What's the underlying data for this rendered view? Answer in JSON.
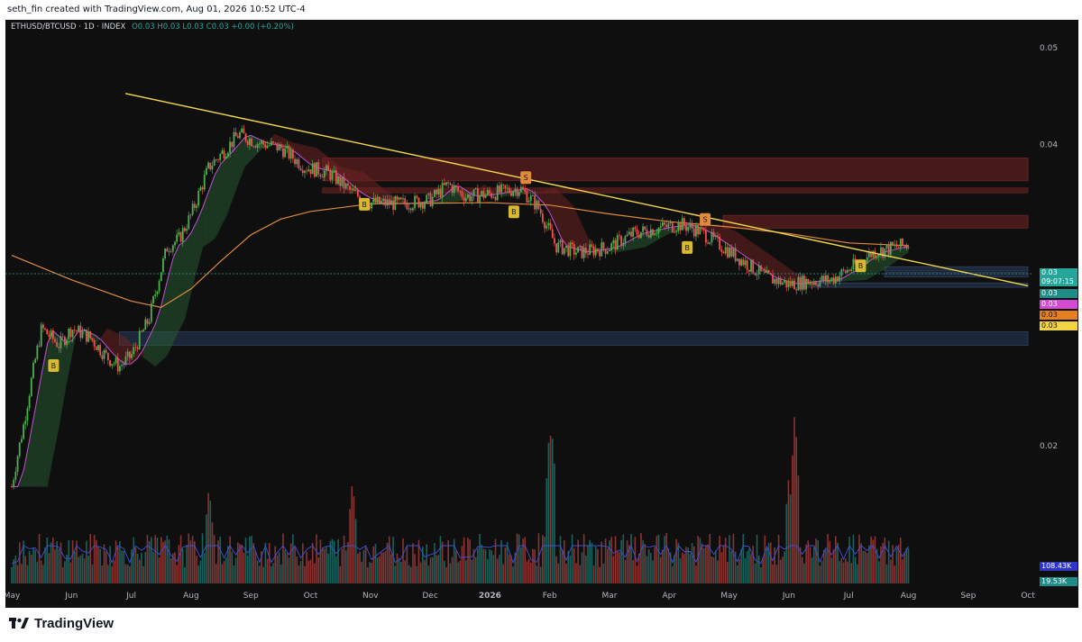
{
  "header": {
    "credit": "seth_fin created with TradingView.com, Aug 01, 2026 10:52 UTC-4"
  },
  "legend": {
    "symbol": "ETHUSD/BTCUSD · 1D · INDEX",
    "ohlc": "O0.03 H0.03 L0.03 C0.03 +0.00 (+0.20%)"
  },
  "footer": {
    "brand": "TradingView"
  },
  "colors": {
    "background": "#0f0f0f",
    "up": "#26a69a",
    "up_candle": "#4caf50",
    "down": "#ef5350",
    "trendline": "#f5d84a",
    "sma": "#e08a3c",
    "signal": "#d9b92f"
  },
  "badges": {
    "price": "0.03",
    "countdown": "09:07:15",
    "cyan": "0.03",
    "magenta": "0.03",
    "orange": "0.03",
    "yellow": "0.03",
    "vol_sma": "108.43K",
    "volume": "19.53K"
  },
  "chart_data": {
    "type": "candlestick",
    "symbol": "ETHUSD/BTCUSD",
    "timeframe": "1D",
    "x_ticks": [
      "May",
      "Jun",
      "Jul",
      "Aug",
      "Sep",
      "Oct",
      "Nov",
      "Dec",
      "2026",
      "Feb",
      "Mar",
      "Apr",
      "May",
      "Jun",
      "Jul",
      "Aug",
      "Sep",
      "Oct"
    ],
    "y_ticks": [
      "0.05",
      "0.04",
      "0.02"
    ],
    "close_series": [
      {
        "m": 0.0,
        "v": 0.0182
      },
      {
        "m": 0.2,
        "v": 0.021
      },
      {
        "m": 0.5,
        "v": 0.0262
      },
      {
        "m": 0.8,
        "v": 0.0252
      },
      {
        "m": 1.0,
        "v": 0.0262
      },
      {
        "m": 1.3,
        "v": 0.0257
      },
      {
        "m": 1.6,
        "v": 0.0245
      },
      {
        "m": 1.8,
        "v": 0.024
      },
      {
        "m": 2.0,
        "v": 0.0246
      },
      {
        "m": 2.3,
        "v": 0.0268
      },
      {
        "m": 2.6,
        "v": 0.0316
      },
      {
        "m": 2.8,
        "v": 0.0322
      },
      {
        "m": 3.0,
        "v": 0.034
      },
      {
        "m": 3.3,
        "v": 0.038
      },
      {
        "m": 3.6,
        "v": 0.0397
      },
      {
        "m": 3.8,
        "v": 0.041
      },
      {
        "m": 4.1,
        "v": 0.0402
      },
      {
        "m": 4.5,
        "v": 0.0397
      },
      {
        "m": 4.9,
        "v": 0.038
      },
      {
        "m": 5.3,
        "v": 0.0375
      },
      {
        "m": 5.7,
        "v": 0.0358
      },
      {
        "m": 6.0,
        "v": 0.035
      },
      {
        "m": 6.5,
        "v": 0.0349
      },
      {
        "m": 7.0,
        "v": 0.0352
      },
      {
        "m": 7.3,
        "v": 0.0365
      },
      {
        "m": 7.6,
        "v": 0.0355
      },
      {
        "m": 8.0,
        "v": 0.0357
      },
      {
        "m": 8.5,
        "v": 0.0362
      },
      {
        "m": 8.8,
        "v": 0.0347
      },
      {
        "m": 9.1,
        "v": 0.0317
      },
      {
        "m": 9.5,
        "v": 0.0312
      },
      {
        "m": 10.0,
        "v": 0.0316
      },
      {
        "m": 10.4,
        "v": 0.0326
      },
      {
        "m": 10.8,
        "v": 0.033
      },
      {
        "m": 11.2,
        "v": 0.0333
      },
      {
        "m": 11.5,
        "v": 0.0328
      },
      {
        "m": 11.9,
        "v": 0.0316
      },
      {
        "m": 12.3,
        "v": 0.0304
      },
      {
        "m": 12.6,
        "v": 0.0295
      },
      {
        "m": 13.0,
        "v": 0.029
      },
      {
        "m": 13.3,
        "v": 0.0292
      },
      {
        "m": 13.7,
        "v": 0.0293
      },
      {
        "m": 14.0,
        "v": 0.03
      },
      {
        "m": 14.4,
        "v": 0.0312
      },
      {
        "m": 14.8,
        "v": 0.0316
      },
      {
        "m": 15.0,
        "v": 0.0318
      }
    ],
    "sma_series": [
      {
        "m": 0.0,
        "v": 0.031
      },
      {
        "m": 1.0,
        "v": 0.0293
      },
      {
        "m": 2.0,
        "v": 0.0279
      },
      {
        "m": 2.5,
        "v": 0.0275
      },
      {
        "m": 3.0,
        "v": 0.0287
      },
      {
        "m": 3.5,
        "v": 0.0306
      },
      {
        "m": 4.0,
        "v": 0.0325
      },
      {
        "m": 4.5,
        "v": 0.0337
      },
      {
        "m": 5.0,
        "v": 0.0343
      },
      {
        "m": 6.0,
        "v": 0.0349
      },
      {
        "m": 8.0,
        "v": 0.035
      },
      {
        "m": 9.0,
        "v": 0.0348
      },
      {
        "m": 10.0,
        "v": 0.0341
      },
      {
        "m": 11.0,
        "v": 0.0335
      },
      {
        "m": 12.0,
        "v": 0.0331
      },
      {
        "m": 13.0,
        "v": 0.0326
      },
      {
        "m": 14.0,
        "v": 0.0319
      },
      {
        "m": 15.0,
        "v": 0.0317
      }
    ],
    "trendline": [
      {
        "m": 1.9,
        "v": 0.045
      },
      {
        "m": 17.0,
        "v": 0.0289
      }
    ],
    "zones": [
      {
        "m0": 5.2,
        "m1": 17.0,
        "v0": 0.0368,
        "v1": 0.0388,
        "kind": "supply"
      },
      {
        "m0": 5.2,
        "m1": 17.0,
        "v0": 0.0358,
        "v1": 0.0362,
        "kind": "supply"
      },
      {
        "m0": 11.9,
        "m1": 17.0,
        "v0": 0.033,
        "v1": 0.034,
        "kind": "supply"
      },
      {
        "m0": 14.6,
        "m1": 17.0,
        "v0": 0.0299,
        "v1": 0.0302,
        "kind": "demand"
      },
      {
        "m0": 14.6,
        "m1": 17.0,
        "v0": 0.0295,
        "v1": 0.0298,
        "kind": "demand"
      },
      {
        "m0": 13.2,
        "m1": 17.0,
        "v0": 0.0288,
        "v1": 0.0291,
        "kind": "demand"
      },
      {
        "m0": 1.8,
        "m1": 17.0,
        "v0": 0.0252,
        "v1": 0.026,
        "kind": "demand"
      }
    ],
    "signals": [
      {
        "label": "B",
        "m": 0.7,
        "v": 0.024
      },
      {
        "label": "B",
        "m": 5.9,
        "v": 0.0348
      },
      {
        "label": "S",
        "m": 8.6,
        "v": 0.037
      },
      {
        "label": "B",
        "m": 8.4,
        "v": 0.0342
      },
      {
        "label": "S",
        "m": 11.6,
        "v": 0.0336
      },
      {
        "label": "B",
        "m": 11.3,
        "v": 0.0315
      },
      {
        "label": "B",
        "m": 14.2,
        "v": 0.0302
      }
    ],
    "volume_spikes": [
      {
        "m": 9.0,
        "v": 180
      },
      {
        "m": 9.05,
        "v": 165
      },
      {
        "m": 13.1,
        "v": 195
      },
      {
        "m": 13.0,
        "v": 120
      },
      {
        "m": 5.7,
        "v": 115
      },
      {
        "m": 3.3,
        "v": 108
      }
    ]
  }
}
